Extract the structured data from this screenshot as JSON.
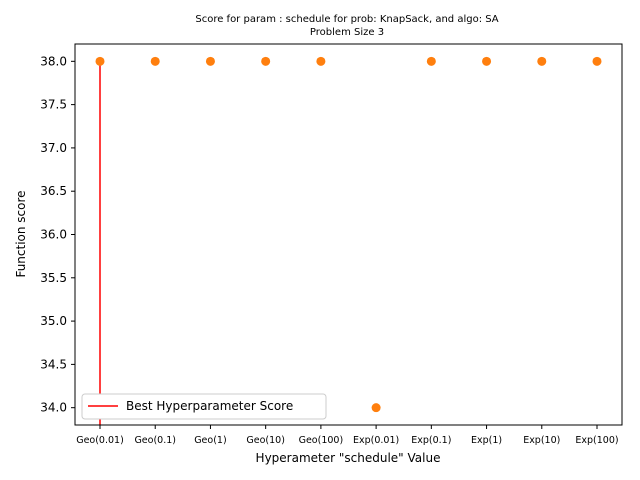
{
  "chart_data": {
    "type": "scatter",
    "title": "Score for param : schedule for prob: KnapSack, and algo: SA",
    "subtitle": "Problem Size 3",
    "xlabel": "Hyperameter \"schedule\" Value",
    "ylabel": "Function score",
    "categories": [
      "Geo(0.01)",
      "Geo(0.1)",
      "Geo(1)",
      "Geo(10)",
      "Geo(100)",
      "Exp(0.01)",
      "Exp(0.1)",
      "Exp(1)",
      "Exp(10)",
      "Exp(100)"
    ],
    "values": [
      38.0,
      38.0,
      38.0,
      38.0,
      38.0,
      34.0,
      38.0,
      38.0,
      38.0,
      38.0
    ],
    "ylim": [
      33.8,
      38.2
    ],
    "yticks": [
      34.0,
      34.5,
      35.0,
      35.5,
      36.0,
      36.5,
      37.0,
      37.5,
      38.0
    ],
    "ytick_labels": [
      "34.0",
      "34.5",
      "35.0",
      "35.5",
      "36.0",
      "36.5",
      "37.0",
      "37.5",
      "38.0"
    ],
    "point_color": "#ff7f0e",
    "best_line": {
      "category": "Geo(0.01)",
      "y_range": [
        33.8,
        38.0
      ],
      "color": "#ff0000"
    },
    "legend": {
      "position": "lower-left",
      "entries": [
        {
          "label": "Best Hyperparameter Score",
          "color": "#ff0000"
        }
      ]
    },
    "grid": false
  }
}
